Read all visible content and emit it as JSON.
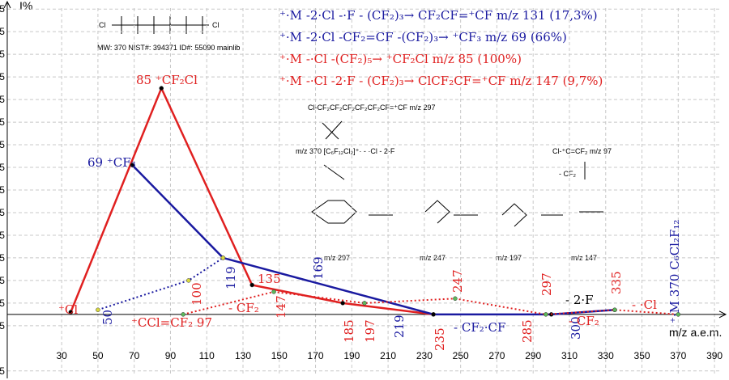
{
  "chart_data": {
    "type": "line",
    "y_label": "I%",
    "x_label": "m/z a.e.m.",
    "xlim": [
      -4,
      398
    ],
    "ylim": [
      -29,
      139
    ],
    "xticks": [
      30,
      50,
      70,
      90,
      110,
      130,
      150,
      170,
      190,
      210,
      230,
      250,
      270,
      290,
      310,
      330,
      350,
      370,
      390
    ],
    "yticks": [
      -25,
      -5,
      5,
      15,
      25,
      35,
      45,
      55,
      65,
      75,
      85,
      95,
      105,
      115,
      125,
      135
    ],
    "grid": true,
    "series": [
      {
        "color": "#e02020",
        "style": "solid",
        "marker_color": "#000000",
        "x": [
          35,
          85,
          135,
          185,
          235
        ],
        "values": [
          1,
          100,
          13,
          5,
          0
        ]
      },
      {
        "color": "#1a1aa0",
        "style": "solid",
        "marker_color": "#000000",
        "x": [
          69,
          119,
          235,
          300,
          335
        ],
        "values": [
          66,
          25,
          0,
          0,
          2
        ]
      },
      {
        "color": "#e02020",
        "style": "dotted",
        "marker_color": "#5cb85c",
        "x": [
          97,
          147,
          197,
          247,
          297,
          335,
          370
        ],
        "values": [
          0,
          10,
          5,
          7,
          0,
          2,
          0
        ]
      },
      {
        "color": "#1a1aa0",
        "style": "dotted",
        "marker_color": "#d8d840",
        "x": [
          50,
          100,
          119
        ],
        "values": [
          2,
          15,
          25
        ]
      }
    ],
    "annotations": [
      "85 ⁺CF₂Cl",
      "69 ⁺CF₃",
      "⁺Cl",
      "50",
      "100",
      "⁺CCl=CF₂ 97",
      "119",
      "135",
      "- CF₂",
      "147",
      "169",
      "185",
      "197",
      "219",
      "235",
      "- CF₂·CF",
      "247",
      "285",
      "297",
      "300",
      "- 2·F",
      "- CF₂",
      "335",
      "- ·Cl",
      "⁺·M 370 C₆Cl₂F₁₂"
    ],
    "equations": [
      {
        "text": "⁺·M -2·Cl -·F - (CF₂)₃→ CF₂CF=⁺CF m/z 131 (17,3%)",
        "color": "#1a1aa0"
      },
      {
        "text": "⁺·M -2·Cl -CF₂=CF -(CF₂)₃→ ⁺CF₃ m/z 69 (66%)",
        "color": "#1a1aa0"
      },
      {
        "text": "⁺·M -·Cl -(CF₂)₅→ ⁺CF₂Cl m/z 85 (100%)",
        "color": "#e02020"
      },
      {
        "text": "⁺·M -·Cl -2·F - (CF₂)₃→ ClCF₂CF=⁺CF m/z 147 (9,7%)",
        "color": "#e02020"
      }
    ],
    "structure": {
      "caption": "MW: 370 NIST#: 394371 ID#: 55090 mainlib",
      "chain": "Cl-CF₂CF₂CF₂CF₂CF₂CF=⁺CF  m/z 297",
      "parent": "m/z 370 [C₆F₁₂Cl₂]⁺· - ·Cl - 2·F",
      "side": "Cl-⁺C=CF₂ m/z 97",
      "side_loss": "- CF₂",
      "ions": [
        "m/z 297",
        "m/z 247",
        "m/z 197",
        "m/z 147"
      ]
    }
  }
}
